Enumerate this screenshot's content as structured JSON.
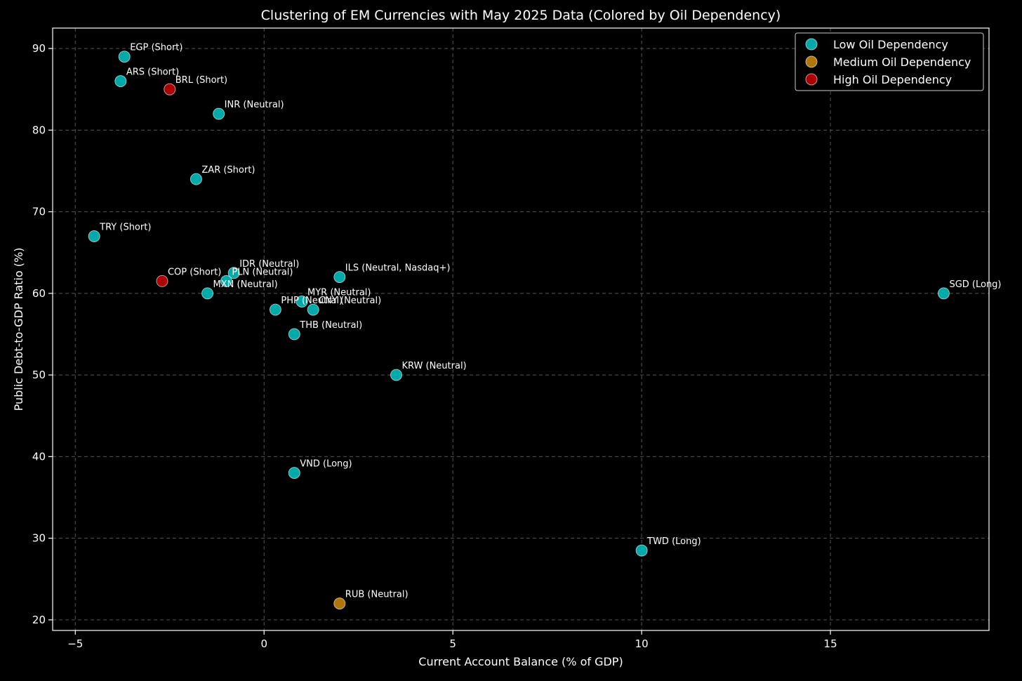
{
  "chart_data": {
    "type": "scatter",
    "title": "Clustering of EM Currencies with May 2025 Data (Colored by Oil Dependency)",
    "xlabel": "Current Account Balance (% of GDP)",
    "ylabel": "Public Debt-to-GDP Ratio (%)",
    "xlim": [
      -5.6,
      19.2
    ],
    "ylim": [
      18.7,
      92.5
    ],
    "xticks": [
      -5,
      0,
      5,
      10,
      15
    ],
    "yticks": [
      20,
      30,
      40,
      50,
      60,
      70,
      80,
      90
    ],
    "xtick_labels": [
      "−5",
      "0",
      "5",
      "10",
      "15"
    ],
    "ytick_labels": [
      "20",
      "30",
      "40",
      "50",
      "60",
      "70",
      "80",
      "90"
    ],
    "grid": true,
    "legend_position": "top-right",
    "series": [
      {
        "name": "Low Oil Dependency",
        "color": "#00c8c8",
        "points": [
          {
            "label": "EGP (Short)",
            "x": -3.7,
            "y": 89
          },
          {
            "label": "ARS (Short)",
            "x": -3.8,
            "y": 86
          },
          {
            "label": "INR (Neutral)",
            "x": -1.2,
            "y": 82
          },
          {
            "label": "ZAR (Short)",
            "x": -1.8,
            "y": 74
          },
          {
            "label": "TRY (Short)",
            "x": -4.5,
            "y": 67
          },
          {
            "label": "IDR (Neutral)",
            "x": -0.8,
            "y": 62.5
          },
          {
            "label": "PLN (Neutral)",
            "x": -1.0,
            "y": 61.5
          },
          {
            "label": "MXN (Neutral)",
            "x": -1.5,
            "y": 60
          },
          {
            "label": "ILS (Neutral, Nasdaq+)",
            "x": 2.0,
            "y": 62
          },
          {
            "label": "MYR (Neutral)",
            "x": 1.0,
            "y": 59
          },
          {
            "label": "PHP (Neutral)",
            "x": 0.3,
            "y": 58
          },
          {
            "label": "CNY (Neutral)",
            "x": 1.3,
            "y": 58
          },
          {
            "label": "THB (Neutral)",
            "x": 0.8,
            "y": 55
          },
          {
            "label": "KRW (Neutral)",
            "x": 3.5,
            "y": 50
          },
          {
            "label": "VND (Long)",
            "x": 0.8,
            "y": 38
          },
          {
            "label": "SGD (Long)",
            "x": 18.0,
            "y": 60
          },
          {
            "label": "TWD (Long)",
            "x": 10.0,
            "y": 28.5
          }
        ]
      },
      {
        "name": "Medium Oil Dependency",
        "color": "#d08a0a",
        "points": [
          {
            "label": "RUB (Neutral)",
            "x": 2.0,
            "y": 22
          }
        ]
      },
      {
        "name": "High Oil Dependency",
        "color": "#cc0000",
        "points": [
          {
            "label": "BRL (Short)",
            "x": -2.5,
            "y": 85
          },
          {
            "label": "COP (Short)",
            "x": -2.7,
            "y": 61.5
          }
        ]
      }
    ]
  }
}
